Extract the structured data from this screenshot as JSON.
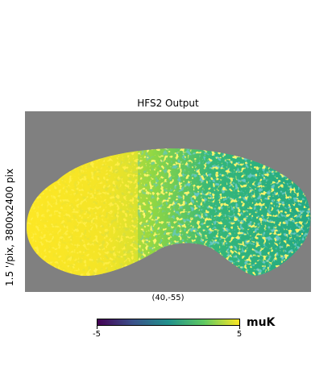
{
  "chart_data": {
    "type": "heatmap",
    "title": "HFS2 Output",
    "ylabel": "1.5 '/pix,   3800x2400 pix",
    "center_label": "(40,-55)",
    "colorbar": {
      "min": -5,
      "max": 5,
      "unit": "muK",
      "tick_labels": [
        "-5",
        "5"
      ],
      "colormap": "viridis"
    },
    "colors": {
      "background": "#808080",
      "viridis_low": "#440154",
      "viridis_mid": "#21918c",
      "viridis_high": "#fde725"
    }
  }
}
